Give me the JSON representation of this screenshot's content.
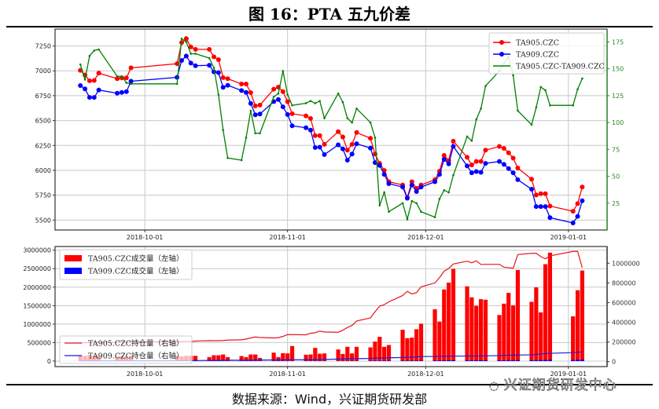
{
  "figure_title": "图 16：PTA 五九价差",
  "caption": "数据来源：Wind，兴证期货研发部",
  "watermark": "兴证期货研发中心",
  "chart_data": [
    {
      "type": "line",
      "x": [
        "2018-09-17",
        "2018-09-18",
        "2018-09-19",
        "2018-09-20",
        "2018-09-21",
        "2018-09-25",
        "2018-09-26",
        "2018-09-27",
        "2018-09-28",
        "2018-10-08",
        "2018-10-09",
        "2018-10-10",
        "2018-10-11",
        "2018-10-12",
        "2018-10-15",
        "2018-10-16",
        "2018-10-17",
        "2018-10-18",
        "2018-10-19",
        "2018-10-22",
        "2018-10-23",
        "2018-10-24",
        "2018-10-25",
        "2018-10-26",
        "2018-10-29",
        "2018-10-30",
        "2018-10-31",
        "2018-11-01",
        "2018-11-02",
        "2018-11-05",
        "2018-11-06",
        "2018-11-07",
        "2018-11-08",
        "2018-11-09",
        "2018-11-12",
        "2018-11-13",
        "2018-11-14",
        "2018-11-15",
        "2018-11-16",
        "2018-11-19",
        "2018-11-20",
        "2018-11-21",
        "2018-11-22",
        "2018-11-23",
        "2018-11-26",
        "2018-11-27",
        "2018-11-28",
        "2018-11-29",
        "2018-11-30",
        "2018-12-03",
        "2018-12-04",
        "2018-12-05",
        "2018-12-06",
        "2018-12-07",
        "2018-12-10",
        "2018-12-11",
        "2018-12-12",
        "2018-12-13",
        "2018-12-14",
        "2018-12-17",
        "2018-12-18",
        "2018-12-19",
        "2018-12-20",
        "2018-12-21",
        "2018-12-24",
        "2018-12-25",
        "2018-12-26",
        "2018-12-27",
        "2018-12-28",
        "2019-01-02",
        "2019-01-03",
        "2019-01-04"
      ],
      "xlim": [
        "2018-09-11",
        "2019-01-09"
      ],
      "xticks": [
        "2018-10-01",
        "2018-11-01",
        "2018-12-01",
        "2019-01-01"
      ],
      "ylim_left": [
        5400,
        7420
      ],
      "yticks_left": [
        5500,
        5750,
        6000,
        6250,
        6500,
        6750,
        7000,
        7250
      ],
      "ylim_right": [
        0,
        187
      ],
      "yticks_right": [
        25,
        50,
        75,
        100,
        125,
        150,
        175
      ],
      "grid": true,
      "legend": "top-right",
      "series": [
        {
          "name": "TA905.CZC",
          "axis": "left",
          "color": "#ff0000",
          "marker": "circle",
          "values": [
            7005,
            6958,
            6900,
            6903,
            6977,
            6921,
            6929,
            6929,
            7030,
            7072,
            7284,
            7324,
            7240,
            7216,
            7216,
            7141,
            7112,
            6932,
            6921,
            6868,
            6868,
            6781,
            6648,
            6656,
            6815,
            6836,
            6791,
            6690,
            6569,
            6547,
            6521,
            6349,
            6349,
            6261,
            6388,
            6335,
            6203,
            6261,
            6380,
            6322,
            6163,
            6070,
            5999,
            5885,
            5853,
            5726,
            5885,
            5818,
            5853,
            5906,
            5991,
            6150,
            6097,
            6293,
            6131,
            6054,
            6089,
            6089,
            6203,
            6240,
            6221,
            6176,
            6123,
            6023,
            5911,
            5752,
            5765,
            5765,
            5641,
            5588,
            5665,
            5832
          ]
        },
        {
          "name": "TA909.CZC",
          "axis": "left",
          "color": "#0000ff",
          "marker": "circle",
          "values": [
            6852,
            6818,
            6733,
            6733,
            6807,
            6775,
            6783,
            6791,
            6895,
            6935,
            7104,
            7149,
            7078,
            7051,
            7056,
            6990,
            6982,
            6834,
            6855,
            6802,
            6783,
            6672,
            6558,
            6566,
            6691,
            6712,
            6638,
            6561,
            6447,
            6428,
            6404,
            6229,
            6232,
            6158,
            6256,
            6216,
            6102,
            6163,
            6267,
            6224,
            6078,
            6049,
            5959,
            5866,
            5832,
            5720,
            5853,
            5787,
            5832,
            5885,
            5959,
            6110,
            6065,
            6240,
            6044,
            5975,
            5988,
            5980,
            6070,
            6089,
            6060,
            6017,
            5975,
            5906,
            5810,
            5636,
            5636,
            5636,
            5524,
            5471,
            5537,
            5694
          ]
        },
        {
          "name": "TA905.CZC-TA909.CZC",
          "axis": "right",
          "color": "#008000",
          "marker": "dot",
          "values": [
            154,
            140,
            162,
            167,
            168,
            143,
            143,
            137,
            136,
            136,
            178,
            175,
            164,
            164,
            160,
            151,
            126,
            93,
            67,
            65,
            86,
            111,
            90,
            90,
            124,
            127,
            148,
            126,
            116,
            118,
            120,
            118,
            120,
            104,
            127,
            119,
            104,
            100,
            113,
            100,
            86,
            23,
            35,
            17,
            25,
            10,
            27,
            25,
            17,
            12,
            29,
            37,
            35,
            51,
            87,
            83,
            103,
            113,
            134,
            148,
            155,
            161,
            144,
            111,
            98,
            114,
            133,
            130,
            116,
            116,
            131,
            141
          ]
        }
      ]
    },
    {
      "type": "bar",
      "x_ref": "same dates as price chart",
      "xticks": [
        "2018-10-01",
        "2018-11-01",
        "2018-12-01",
        "2019-01-01"
      ],
      "ylim_left": [
        -150000,
        3100000
      ],
      "yticks_left": [
        0,
        500000,
        1000000,
        1500000,
        2000000,
        2500000,
        3000000
      ],
      "ylim_right": [
        -50000,
        1170000
      ],
      "yticks_right": [
        0,
        200000,
        400000,
        600000,
        800000,
        1000000
      ],
      "grid": true,
      "legend": "top-left",
      "series": [
        {
          "name": "TA905.CZC成交量（左轴）",
          "kind": "bar",
          "axis": "left",
          "color": "#ff0000",
          "values": [
            150000,
            140000,
            160000,
            150000,
            140000,
            120000,
            130000,
            120000,
            130000,
            140000,
            130000,
            140000,
            142000,
            142000,
            107000,
            157000,
            157000,
            178000,
            107000,
            135000,
            107000,
            178000,
            178000,
            85000,
            228000,
            107000,
            214000,
            207000,
            406000,
            171000,
            178000,
            356000,
            199000,
            207000,
            313000,
            192000,
            385000,
            207000,
            385000,
            370000,
            527000,
            655000,
            385000,
            434000,
            848000,
            620000,
            634000,
            862000,
            1011000,
            1403000,
            1068000,
            1937000,
            2123000,
            2493000,
            2023000,
            1724000,
            1496000,
            1674000,
            1660000,
            1246000,
            1553000,
            1845000,
            1510000,
            2464000,
            1603000,
            1994000,
            1318000,
            2621000,
            2934000,
            1211000,
            1916000,
            2450000
          ]
        },
        {
          "name": "TA909.CZC成交量（左轴）",
          "kind": "bar",
          "axis": "left",
          "color": "#0000ff",
          "values": [
            3000,
            3000,
            3000,
            3000,
            3000,
            3000,
            3000,
            3000,
            3000,
            3000,
            3000,
            3000,
            3000,
            3000,
            4000,
            4000,
            4000,
            4000,
            4000,
            4000,
            4000,
            4000,
            4000,
            4000,
            5000,
            5000,
            5000,
            5000,
            5000,
            5000,
            5000,
            6000,
            6000,
            6000,
            6000,
            7000,
            7000,
            8000,
            8000,
            9000,
            10000,
            10000,
            11000,
            11000,
            12000,
            12000,
            13000,
            13000,
            14000,
            15000,
            16000,
            18000,
            20000,
            22000,
            20000,
            18000,
            20000,
            22000,
            22000,
            20000,
            22000,
            24000,
            25000,
            26000,
            24000,
            26000,
            28000,
            32000,
            35000,
            30000,
            35000,
            40000
          ]
        },
        {
          "name": "TA905.CZC持仓量（右轴）",
          "kind": "line",
          "axis": "right",
          "color": "#e8141e",
          "values": [
            190000,
            192000,
            193000,
            194000,
            195000,
            196000,
            197000,
            198000,
            200000,
            203000,
            203000,
            204000,
            206000,
            209000,
            214000,
            213000,
            213000,
            215000,
            219000,
            222000,
            230000,
            241000,
            251000,
            246000,
            241000,
            244000,
            257000,
            275000,
            275000,
            273000,
            289000,
            294000,
            310000,
            302000,
            299000,
            320000,
            347000,
            368000,
            413000,
            445000,
            507000,
            565000,
            579000,
            608000,
            672000,
            715000,
            688000,
            701000,
            760000,
            800000,
            853000,
            920000,
            947000,
            992000,
            1021000,
            1005000,
            1024000,
            987000,
            989000,
            989000,
            960000,
            955000,
            949000,
            1088000,
            1101000,
            1101000,
            1067000,
            1045000,
            1075000,
            1120000,
            1120000,
            955000
          ]
        },
        {
          "name": "TA909.CZC持仓量（右轴）",
          "kind": "line",
          "axis": "right",
          "color": "#1a1ae6",
          "values": [
            8000,
            8200,
            8400,
            8600,
            8800,
            9000,
            9200,
            9500,
            9800,
            10000,
            10500,
            11000,
            11500,
            12000,
            12500,
            13000,
            13500,
            14000,
            14500,
            15000,
            15500,
            16000,
            16500,
            17000,
            17500,
            18000,
            18500,
            19000,
            19500,
            20000,
            20500,
            21000,
            22000,
            23000,
            27000,
            28000,
            29000,
            30000,
            31000,
            33000,
            35000,
            37000,
            38000,
            40000,
            42000,
            44000,
            46000,
            48000,
            52000,
            53000,
            54000,
            55000,
            56000,
            57000,
            57000,
            58000,
            58000,
            59000,
            59000,
            62000,
            64000,
            65000,
            66000,
            67000,
            70000,
            74000,
            78000,
            82000,
            85000,
            92000,
            96000,
            99000
          ]
        }
      ]
    }
  ]
}
